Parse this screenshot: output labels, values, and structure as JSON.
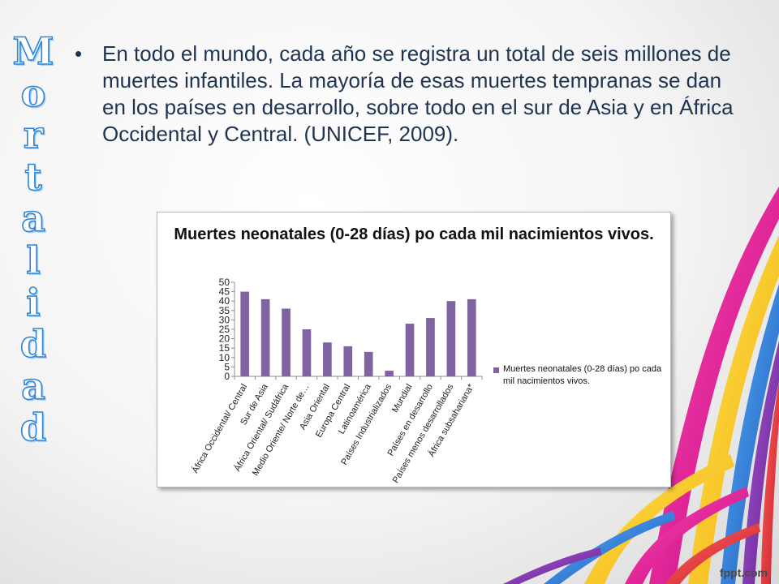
{
  "side_title": "Mortalidad",
  "body_text": "En todo el mundo, cada año se registra un total de seis millones de muertes infantiles. La mayoría de esas muertes tempranas se dan en los países en desarrollo, sobre todo en el sur de Asia y en África Occidental y Central. (UNICEF, 2009).",
  "bullet_symbol": "•",
  "footer": "fppt.com",
  "chart_data": {
    "type": "bar",
    "title": "Muertes neonatales (0-28 días) po cada mil nacimientos vivos.",
    "categories": [
      "África Occidental/ Central",
      "Sur de Asia",
      "África Oriental/ Sudáfrica",
      "Medio Oriente/ Norte de…",
      "Asia Oriental",
      "Europa Central",
      "Latinoamérica",
      "Países Industrializados",
      "Mundial",
      "Países en desarrollo",
      "Países menos desarrollados",
      "África subsahariana*"
    ],
    "series": [
      {
        "name": "Muertes neonatales (0-28 días) po cada mil nacimientos vivos.",
        "values": [
          45,
          41,
          36,
          25,
          18,
          16,
          13,
          3,
          28,
          31,
          40,
          41
        ]
      }
    ],
    "ylim": [
      0,
      50
    ],
    "yticks": [
      "0",
      "5",
      "10",
      "15",
      "20",
      "25",
      "30",
      "35",
      "40",
      "45",
      "50"
    ],
    "grid": false,
    "legend_position": "right",
    "bar_color": "#8064a2"
  }
}
